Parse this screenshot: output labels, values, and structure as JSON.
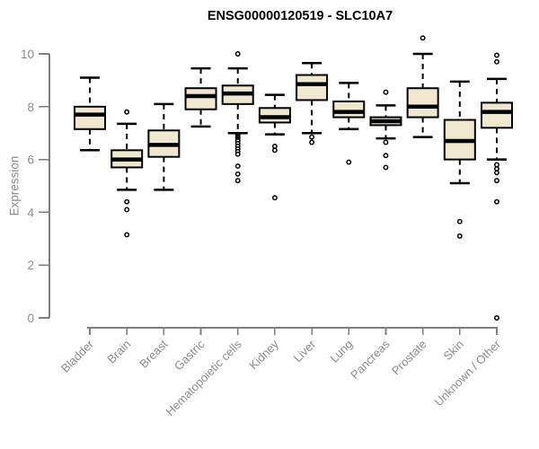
{
  "chart_data": {
    "type": "boxplot",
    "title": "ENSG00000120519 - SLC10A7",
    "ylabel": "Expression",
    "xlabel": "",
    "ylim": [
      0,
      10
    ],
    "yticks": [
      0,
      2,
      4,
      6,
      8,
      10
    ],
    "grid": false,
    "legend_position": "none",
    "categories": [
      "Bladder",
      "Brain",
      "Breast",
      "Gastric",
      "Hematopoietic cells",
      "Kidney",
      "Liver",
      "Lung",
      "Pancreas",
      "Prostate",
      "Skin",
      "Unknown / Other"
    ],
    "series": [
      {
        "name": "Bladder",
        "low": 6.35,
        "q1": 7.15,
        "median": 7.7,
        "q3": 8.0,
        "high": 9.1,
        "outliers": []
      },
      {
        "name": "Brain",
        "low": 4.85,
        "q1": 5.7,
        "median": 6.0,
        "q3": 6.35,
        "high": 7.35,
        "outliers": [
          7.8,
          4.4,
          4.1,
          3.15
        ]
      },
      {
        "name": "Breast",
        "low": 4.85,
        "q1": 6.1,
        "median": 6.55,
        "q3": 7.1,
        "high": 8.1,
        "outliers": []
      },
      {
        "name": "Gastric",
        "low": 7.25,
        "q1": 7.9,
        "median": 8.4,
        "q3": 8.7,
        "high": 9.45,
        "outliers": []
      },
      {
        "name": "Hematopoietic cells",
        "low": 7.0,
        "q1": 8.1,
        "median": 8.5,
        "q3": 8.8,
        "high": 9.45,
        "outliers": [
          10.0,
          6.95,
          6.9,
          6.85,
          6.8,
          6.75,
          6.7,
          6.6,
          6.5,
          6.4,
          6.3,
          6.2,
          5.75,
          5.45,
          5.2
        ]
      },
      {
        "name": "Kidney",
        "low": 6.95,
        "q1": 7.4,
        "median": 7.6,
        "q3": 7.95,
        "high": 8.45,
        "outliers": [
          6.5,
          6.35,
          4.55
        ]
      },
      {
        "name": "Liver",
        "low": 7.0,
        "q1": 8.25,
        "median": 8.85,
        "q3": 9.2,
        "high": 9.65,
        "outliers": [
          6.85,
          6.65
        ]
      },
      {
        "name": "Lung",
        "low": 7.15,
        "q1": 7.6,
        "median": 7.8,
        "q3": 8.2,
        "high": 8.9,
        "outliers": [
          5.9
        ]
      },
      {
        "name": "Pancreas",
        "low": 6.8,
        "q1": 7.3,
        "median": 7.45,
        "q3": 7.6,
        "high": 8.05,
        "outliers": [
          8.55,
          6.65,
          6.15,
          5.7
        ]
      },
      {
        "name": "Prostate",
        "low": 6.85,
        "q1": 7.6,
        "median": 8.0,
        "q3": 8.7,
        "high": 10.0,
        "outliers": [
          10.6
        ]
      },
      {
        "name": "Skin",
        "low": 5.1,
        "q1": 6.0,
        "median": 6.7,
        "q3": 7.5,
        "high": 8.95,
        "outliers": [
          3.65,
          3.1
        ]
      },
      {
        "name": "Unknown / Other",
        "low": 6.0,
        "q1": 7.2,
        "median": 7.8,
        "q3": 8.15,
        "high": 9.05,
        "outliers": [
          9.95,
          9.7,
          5.8,
          5.65,
          5.5,
          5.2,
          4.4,
          0.0
        ]
      }
    ],
    "colors": {
      "box_fill": "#EFE8CF",
      "box_border": "#000000",
      "median": "#000000",
      "whisker": "#000000",
      "axis_line": "#7e7e7e",
      "axis_text": "#8b8b8b",
      "title_text": "#000000",
      "background": "#ffffff"
    }
  }
}
